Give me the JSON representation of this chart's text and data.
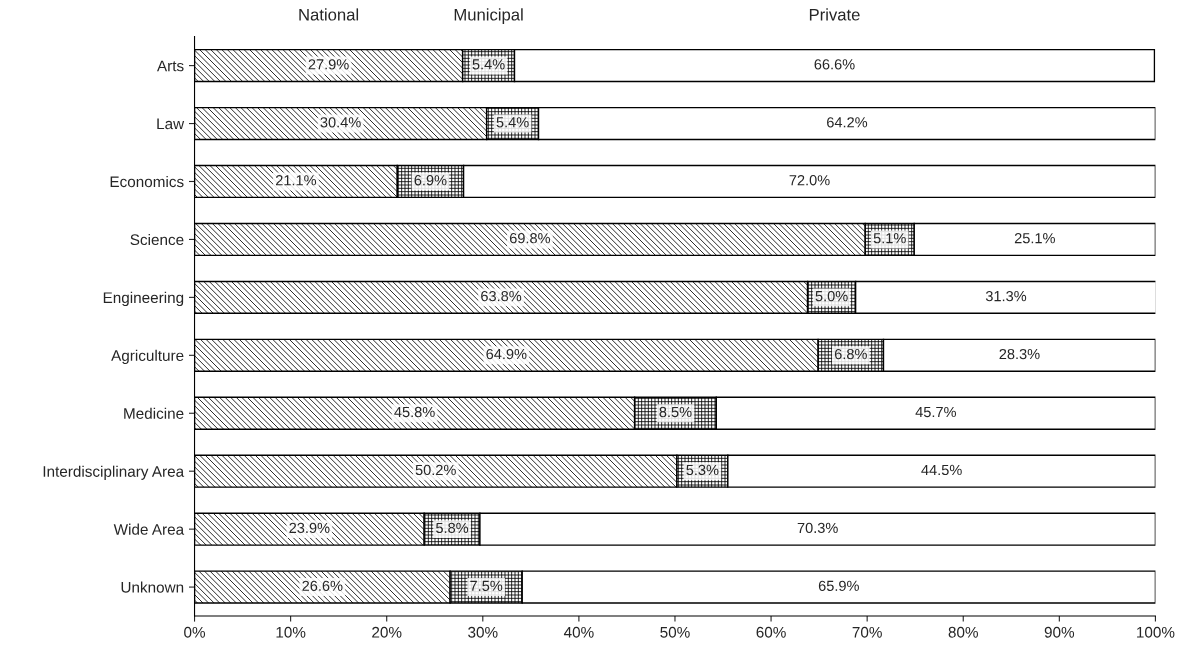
{
  "chart_data": {
    "type": "bar",
    "orientation": "horizontal",
    "stacked": true,
    "categories": [
      "Arts",
      "Law",
      "Economics",
      "Science",
      "Engineering",
      "Agriculture",
      "Medicine",
      "Interdisciplinary Area",
      "Wide Area",
      "Unknown"
    ],
    "series": [
      {
        "name": "National",
        "color": "#000000",
        "values": [
          27.9,
          30.4,
          21.1,
          69.8,
          63.8,
          64.9,
          45.8,
          50.2,
          23.9,
          26.6
        ],
        "value_labels": [
          "27.9%",
          "30.4%",
          "21.1%",
          "69.8%",
          "63.8%",
          "64.9%",
          "45.8%",
          "50.2%",
          "23.9%",
          "26.6%"
        ]
      },
      {
        "name": "Municipal",
        "color": "#000000",
        "values": [
          5.4,
          5.4,
          6.9,
          5.1,
          5.0,
          6.8,
          8.5,
          5.3,
          5.8,
          7.5
        ],
        "value_labels": [
          "5.4%",
          "5.4%",
          "6.9%",
          "5.1%",
          "5.0%",
          "6.8%",
          "8.5%",
          "5.3%",
          "5.8%",
          "7.5%"
        ]
      },
      {
        "name": "Private",
        "color": "#ffffff",
        "values": [
          66.6,
          64.2,
          72.0,
          25.1,
          31.3,
          28.3,
          45.7,
          44.5,
          70.3,
          65.9
        ],
        "value_labels": [
          "66.6%",
          "64.2%",
          "72.0%",
          "25.1%",
          "31.3%",
          "28.3%",
          "45.7%",
          "44.5%",
          "70.3%",
          "65.9%"
        ]
      }
    ],
    "xlim": [
      0,
      100
    ],
    "xticks": [
      {
        "value": 0,
        "label": "0%"
      },
      {
        "value": 10,
        "label": "10%"
      },
      {
        "value": 20,
        "label": "20%"
      },
      {
        "value": 30,
        "label": "30%"
      },
      {
        "value": 40,
        "label": "40%"
      },
      {
        "value": 50,
        "label": "50%"
      },
      {
        "value": 60,
        "label": "60%"
      },
      {
        "value": 70,
        "label": "70%"
      },
      {
        "value": 80,
        "label": "80%"
      },
      {
        "value": 90,
        "label": "90%"
      },
      {
        "value": 100,
        "label": "100%"
      }
    ],
    "grid": false
  }
}
